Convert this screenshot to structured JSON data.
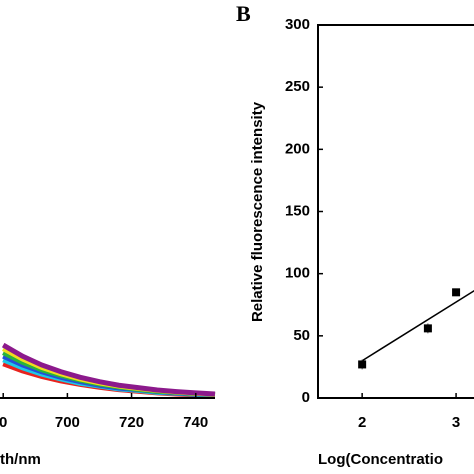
{
  "chart_data": [
    {
      "type": "line",
      "x_label": "th/nm",
      "x": [
        680,
        686,
        692,
        698,
        704,
        710,
        716,
        722,
        728,
        734,
        740,
        746
      ],
      "xlim": [
        679,
        746
      ],
      "xticks": [
        {
          "value": 680,
          "label": "0"
        },
        700,
        720,
        740
      ],
      "ylim": [
        0,
        100
      ],
      "series": [
        {
          "color": "#e8231e",
          "values": [
            8.6,
            6.8,
            5.4,
            4.3,
            3.4,
            2.7,
            2.1,
            1.7,
            1.3,
            1.0,
            0.8,
            0.7
          ]
        },
        {
          "color": "#1ec8e6",
          "values": [
            9.6,
            7.6,
            6.0,
            4.8,
            3.7,
            3.0,
            2.3,
            1.9,
            1.4,
            1.2,
            0.9,
            0.7
          ]
        },
        {
          "color": "#2250d8",
          "values": [
            10.5,
            8.3,
            6.6,
            5.2,
            4.1,
            3.2,
            2.5,
            2.1,
            1.6,
            1.3,
            1.0,
            0.8
          ]
        },
        {
          "color": "#28b43c",
          "values": [
            11.4,
            9.0,
            7.1,
            5.7,
            4.5,
            3.5,
            2.8,
            2.2,
            1.7,
            1.4,
            1.1,
            0.9
          ]
        },
        {
          "color": "#f0dc1e",
          "values": [
            12.4,
            9.8,
            7.7,
            6.1,
            4.8,
            3.8,
            3.0,
            2.4,
            1.9,
            1.5,
            1.2,
            0.9
          ]
        },
        {
          "color": "#8c1a8c",
          "values": [
            13.3,
            10.5,
            8.3,
            6.6,
            5.2,
            4.1,
            3.2,
            2.6,
            2.0,
            1.6,
            1.3,
            1.0
          ]
        }
      ]
    },
    {
      "type": "scatter",
      "panel_label": "B",
      "y_label": "Relative fluorescence intensity",
      "x_label": "Log(Concentratio",
      "x": [
        2,
        2.7,
        3
      ],
      "values": [
        27,
        56,
        85
      ],
      "errors": [
        4,
        4,
        3
      ],
      "color": "#000000",
      "fit": {
        "x": [
          2,
          3.4
        ],
        "values": [
          30,
          96
        ]
      },
      "xlim": [
        1.53,
        4
      ],
      "ylim": [
        0,
        300
      ],
      "xticks": [
        2,
        3
      ],
      "yticks": [
        0,
        50,
        100,
        150,
        200,
        250,
        300
      ]
    }
  ]
}
